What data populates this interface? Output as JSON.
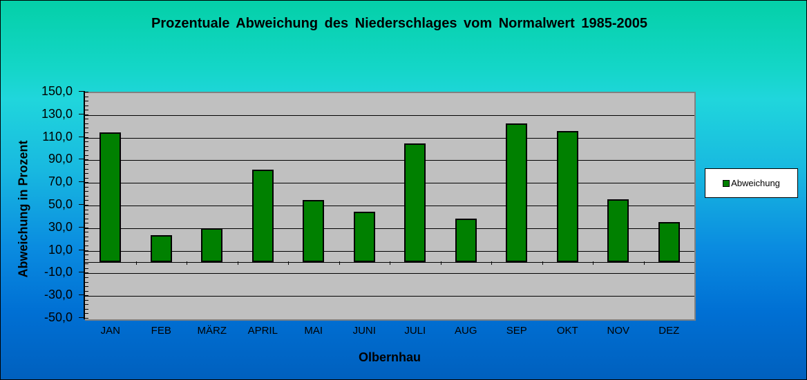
{
  "chart_data": {
    "type": "bar",
    "title": "Prozentuale Abweichung des Niederschlages vom Normalwert 1985-2005",
    "xlabel": "Olbernhau",
    "ylabel": "Abweichung in Prozent",
    "categories": [
      "JAN",
      "FEB",
      "MÄRZ",
      "APRIL",
      "MAI",
      "JUNI",
      "JULI",
      "AUG",
      "SEP",
      "OKT",
      "NOV",
      "DEZ"
    ],
    "series": [
      {
        "name": "Abweichung",
        "color": "#008000",
        "values": [
          114,
          23,
          29,
          81,
          54,
          44,
          104,
          38,
          122,
          115,
          55,
          35
        ]
      }
    ],
    "ylim": [
      -50,
      150
    ],
    "yticks": [
      "150,0",
      "130,0",
      "110,0",
      "90,0",
      "70,0",
      "50,0",
      "30,0",
      "10,0",
      "-10,0",
      "-30,0",
      "-50,0"
    ],
    "ytick_values": [
      150,
      130,
      110,
      90,
      70,
      50,
      30,
      10,
      -10,
      -30,
      -50
    ],
    "grid": true,
    "legend_position": "right",
    "plot_background": "#C0C0C0"
  },
  "legend": {
    "label": "Abweichung"
  }
}
